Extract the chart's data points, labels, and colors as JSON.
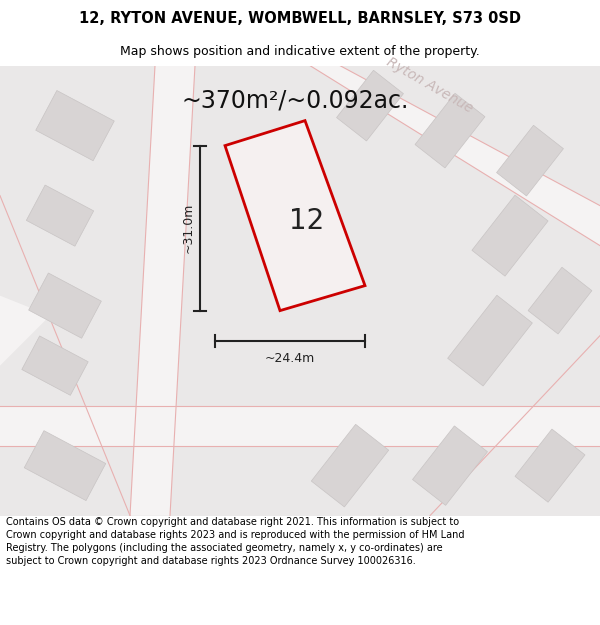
{
  "title_line1": "12, RYTON AVENUE, WOMBWELL, BARNSLEY, S73 0SD",
  "title_line2": "Map shows position and indicative extent of the property.",
  "area_text": "~370m²/~0.092ac.",
  "number_label": "12",
  "dim_height": "~31.0m",
  "dim_width": "~24.4m",
  "street_label": "Ryton Avenue",
  "footer_text": "Contains OS data © Crown copyright and database right 2021. This information is subject to Crown copyright and database rights 2023 and is reproduced with the permission of HM Land Registry. The polygons (including the associated geometry, namely x, y co-ordinates) are subject to Crown copyright and database rights 2023 Ordnance Survey 100026316.",
  "map_bg": "#eae8e8",
  "road_fill": "#f5f3f3",
  "road_pink": "#e8b0b0",
  "building_fill": "#d8d4d4",
  "building_edge": "#c8c4c4",
  "highlight_fill": "#f5f0f0",
  "highlight_edge": "#cc0000",
  "dim_color": "#222222",
  "street_color": "#c8b8b8",
  "title_fontsize": 10.5,
  "subtitle_fontsize": 9,
  "area_fontsize": 17,
  "number_fontsize": 20,
  "dim_fontsize": 9,
  "street_fontsize": 10,
  "footer_fontsize": 7
}
